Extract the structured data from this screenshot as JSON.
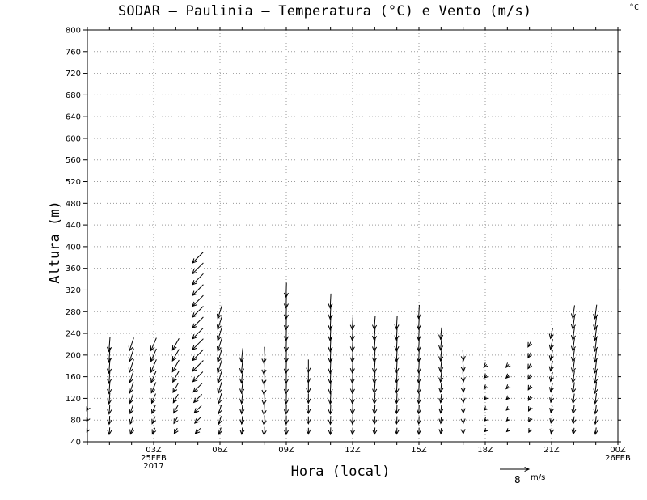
{
  "title": "SODAR – Paulinia – Temperatura (°C) e Vento (m/s)",
  "corner_unit": "°C",
  "chart_data": {
    "type": "vector",
    "title": "SODAR – Paulinia – Temperatura (°C) e Vento (m/s)",
    "xlabel": "Hora (local)",
    "ylabel": "Altura (m)",
    "ylim": [
      40,
      800
    ],
    "yticks": [
      40,
      80,
      120,
      160,
      200,
      240,
      280,
      320,
      360,
      400,
      440,
      480,
      520,
      560,
      600,
      640,
      680,
      720,
      760,
      800
    ],
    "xlim": [
      0,
      24
    ],
    "xticks": [
      {
        "hour": 3,
        "lines": [
          "03Z",
          "25FEB",
          "2017"
        ]
      },
      {
        "hour": 6,
        "lines": [
          "06Z"
        ]
      },
      {
        "hour": 9,
        "lines": [
          "09Z"
        ]
      },
      {
        "hour": 12,
        "lines": [
          "12Z"
        ]
      },
      {
        "hour": 15,
        "lines": [
          "15Z"
        ]
      },
      {
        "hour": 18,
        "lines": [
          "18Z"
        ]
      },
      {
        "hour": 21,
        "lines": [
          "21Z"
        ]
      },
      {
        "hour": 24,
        "lines": [
          "00Z",
          "26FEB"
        ]
      }
    ],
    "grid": true,
    "reference_vector": {
      "speed": 8,
      "unit": "m/s"
    },
    "series": [
      {
        "hour": 0.0,
        "top": 100,
        "u": -0.6,
        "v": -1.2
      },
      {
        "hour": 1.0,
        "top": 220,
        "u": -0.3,
        "v": -4.0
      },
      {
        "hour": 2.0,
        "top": 220,
        "u": -1.2,
        "v": -3.6
      },
      {
        "hour": 3.0,
        "top": 220,
        "u": -1.5,
        "v": -3.5
      },
      {
        "hour": 4.0,
        "top": 220,
        "u": -1.8,
        "v": -3.2
      },
      {
        "hour": 5.0,
        "top": 380,
        "u": -3.0,
        "v": -3.0
      },
      {
        "hour": 6.0,
        "top": 280,
        "u": -1.2,
        "v": -3.8
      },
      {
        "hour": 7.0,
        "top": 200,
        "u": -0.4,
        "v": -3.8
      },
      {
        "hour": 8.0,
        "top": 200,
        "u": -0.2,
        "v": -4.5
      },
      {
        "hour": 9.0,
        "top": 320,
        "u": -0.1,
        "v": -4.0
      },
      {
        "hour": 10.0,
        "top": 180,
        "u": 0.0,
        "v": -3.5
      },
      {
        "hour": 11.0,
        "top": 300,
        "u": -0.2,
        "v": -4.0
      },
      {
        "hour": 12.0,
        "top": 260,
        "u": -0.2,
        "v": -3.8
      },
      {
        "hour": 13.0,
        "top": 260,
        "u": -0.3,
        "v": -3.8
      },
      {
        "hour": 14.0,
        "top": 260,
        "u": -0.2,
        "v": -3.6
      },
      {
        "hour": 15.0,
        "top": 280,
        "u": -0.2,
        "v": -3.7
      },
      {
        "hour": 16.0,
        "top": 240,
        "u": -0.3,
        "v": -3.2
      },
      {
        "hour": 17.0,
        "top": 200,
        "u": 0.2,
        "v": -3.0
      },
      {
        "hour": 18.0,
        "top": 180,
        "u": -0.8,
        "v": -0.8
      },
      {
        "hour": 19.0,
        "top": 180,
        "u": -0.8,
        "v": -0.8
      },
      {
        "hour": 20.0,
        "top": 220,
        "u": -0.8,
        "v": -1.5
      },
      {
        "hour": 21.0,
        "top": 240,
        "u": -0.6,
        "v": -2.8
      },
      {
        "hour": 22.0,
        "top": 280,
        "u": -0.5,
        "v": -3.5
      },
      {
        "hour": 23.0,
        "top": 280,
        "u": -0.5,
        "v": -3.8
      }
    ]
  }
}
